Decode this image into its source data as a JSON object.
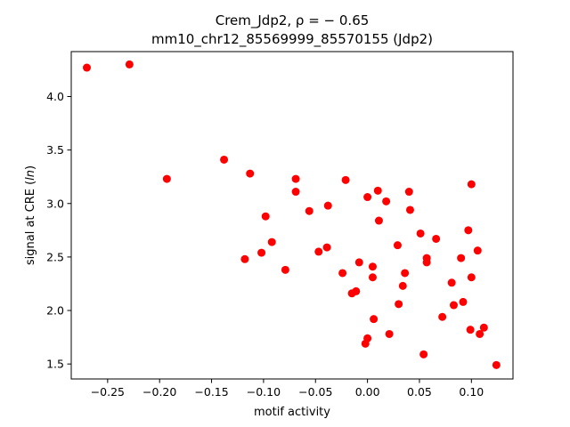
{
  "chart_data": {
    "type": "scatter",
    "title_line1": "Crem_Jdp2, ρ = − 0.65",
    "title_line2": "mm10_chr12_85569999_85570155 (Jdp2)",
    "xlabel": "motif activity",
    "ylabel_prefix": "signal at CRE (",
    "ylabel_var": "ln",
    "ylabel_suffix": ")",
    "xlim": [
      -0.285,
      0.14
    ],
    "ylim": [
      1.36,
      4.42
    ],
    "xticks": [
      -0.25,
      -0.2,
      -0.15,
      -0.1,
      -0.05,
      0.0,
      0.05,
      0.1
    ],
    "xtick_labels": [
      "−0.25",
      "−0.20",
      "−0.15",
      "−0.10",
      "−0.05",
      "0.00",
      "0.05",
      "0.10"
    ],
    "yticks": [
      1.5,
      2.0,
      2.5,
      3.0,
      3.5,
      4.0
    ],
    "ytick_labels": [
      "1.5",
      "2.0",
      "2.5",
      "3.0",
      "3.5",
      "4.0"
    ],
    "grid": false,
    "marker_color": "#ff0000",
    "points": [
      {
        "x": -0.27,
        "y": 4.27
      },
      {
        "x": -0.229,
        "y": 4.3
      },
      {
        "x": -0.193,
        "y": 3.23
      },
      {
        "x": -0.138,
        "y": 3.41
      },
      {
        "x": -0.113,
        "y": 3.28
      },
      {
        "x": -0.118,
        "y": 2.48
      },
      {
        "x": -0.102,
        "y": 2.54
      },
      {
        "x": -0.098,
        "y": 2.88
      },
      {
        "x": -0.092,
        "y": 2.64
      },
      {
        "x": -0.079,
        "y": 2.38
      },
      {
        "x": -0.069,
        "y": 3.23
      },
      {
        "x": -0.069,
        "y": 3.11
      },
      {
        "x": -0.056,
        "y": 2.93
      },
      {
        "x": -0.047,
        "y": 2.55
      },
      {
        "x": -0.038,
        "y": 2.98
      },
      {
        "x": -0.039,
        "y": 2.59
      },
      {
        "x": -0.021,
        "y": 3.22
      },
      {
        "x": -0.024,
        "y": 2.35
      },
      {
        "x": -0.015,
        "y": 2.16
      },
      {
        "x": -0.011,
        "y": 2.18
      },
      {
        "x": -0.008,
        "y": 2.45
      },
      {
        "x": 0.0,
        "y": 3.06
      },
      {
        "x": 0.01,
        "y": 3.12
      },
      {
        "x": 0.018,
        "y": 3.02
      },
      {
        "x": 0.011,
        "y": 2.84
      },
      {
        "x": 0.005,
        "y": 2.41
      },
      {
        "x": 0.005,
        "y": 2.31
      },
      {
        "x": 0.006,
        "y": 1.92
      },
      {
        "x": 0.0,
        "y": 1.74
      },
      {
        "x": -0.002,
        "y": 1.69
      },
      {
        "x": 0.021,
        "y": 1.78
      },
      {
        "x": 0.029,
        "y": 2.61
      },
      {
        "x": 0.03,
        "y": 2.06
      },
      {
        "x": 0.034,
        "y": 2.23
      },
      {
        "x": 0.036,
        "y": 2.35
      },
      {
        "x": 0.04,
        "y": 3.11
      },
      {
        "x": 0.041,
        "y": 2.94
      },
      {
        "x": 0.051,
        "y": 2.72
      },
      {
        "x": 0.057,
        "y": 2.49
      },
      {
        "x": 0.057,
        "y": 2.45
      },
      {
        "x": 0.054,
        "y": 1.59
      },
      {
        "x": 0.066,
        "y": 2.67
      },
      {
        "x": 0.072,
        "y": 1.94
      },
      {
        "x": 0.081,
        "y": 2.26
      },
      {
        "x": 0.083,
        "y": 2.05
      },
      {
        "x": 0.09,
        "y": 2.49
      },
      {
        "x": 0.092,
        "y": 2.08
      },
      {
        "x": 0.097,
        "y": 2.75
      },
      {
        "x": 0.1,
        "y": 3.18
      },
      {
        "x": 0.1,
        "y": 2.31
      },
      {
        "x": 0.099,
        "y": 1.82
      },
      {
        "x": 0.106,
        "y": 2.56
      },
      {
        "x": 0.108,
        "y": 1.78
      },
      {
        "x": 0.112,
        "y": 1.84
      },
      {
        "x": 0.124,
        "y": 1.49
      }
    ]
  }
}
